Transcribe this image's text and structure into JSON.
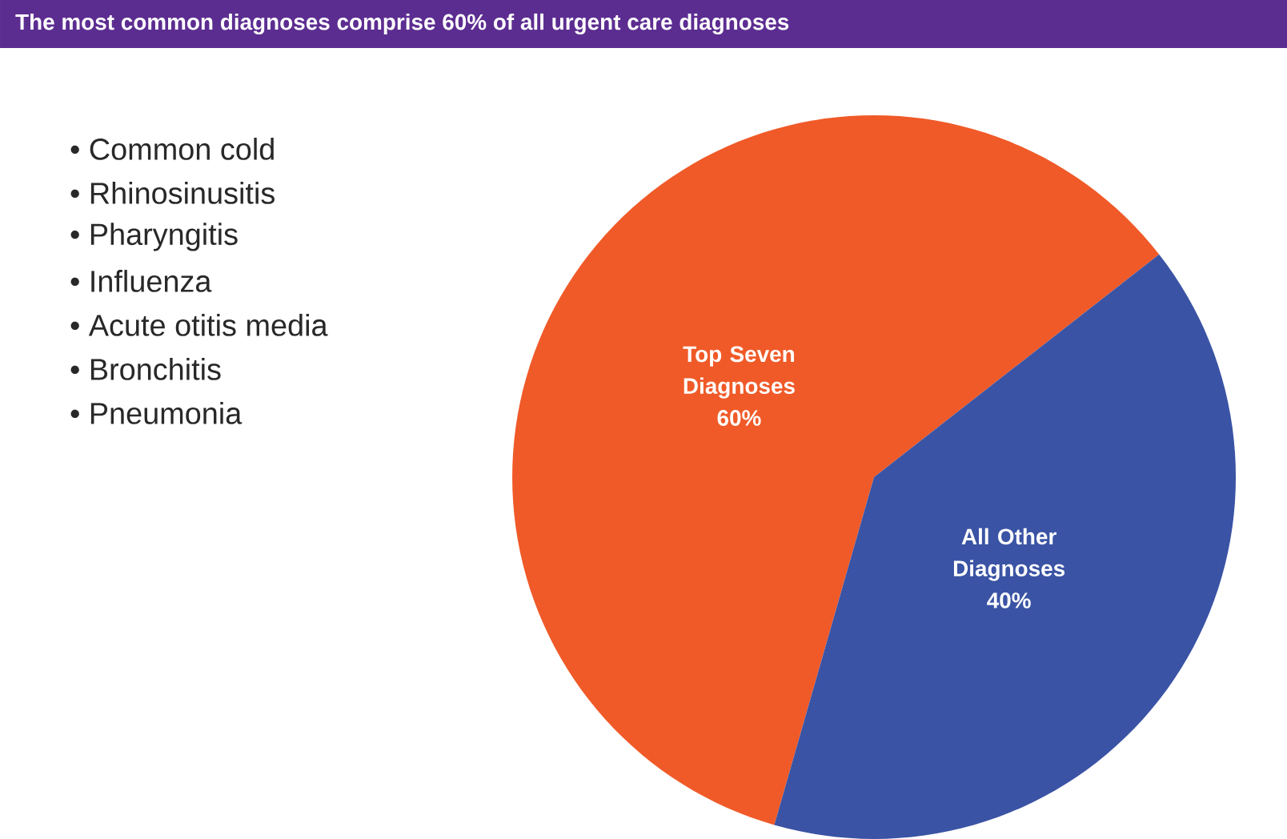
{
  "chart_data": {
    "type": "pie",
    "title": "The most common diagnoses comprise 60% of all urgent care diagnoses",
    "categories": [
      "Top Seven Diagnoses",
      "All Other Diagnoses"
    ],
    "values": [
      60,
      40
    ],
    "value_labels": [
      "60%",
      "40%"
    ],
    "colors": [
      "#f05a28",
      "#3a53a4"
    ],
    "annotations": [
      "• Common cold",
      "• Rhinosinusitis",
      "• Pharyngitis",
      "• Influenza",
      "• Acute otitis media",
      "• Bronchitis",
      "• Pneumonia"
    ]
  }
}
